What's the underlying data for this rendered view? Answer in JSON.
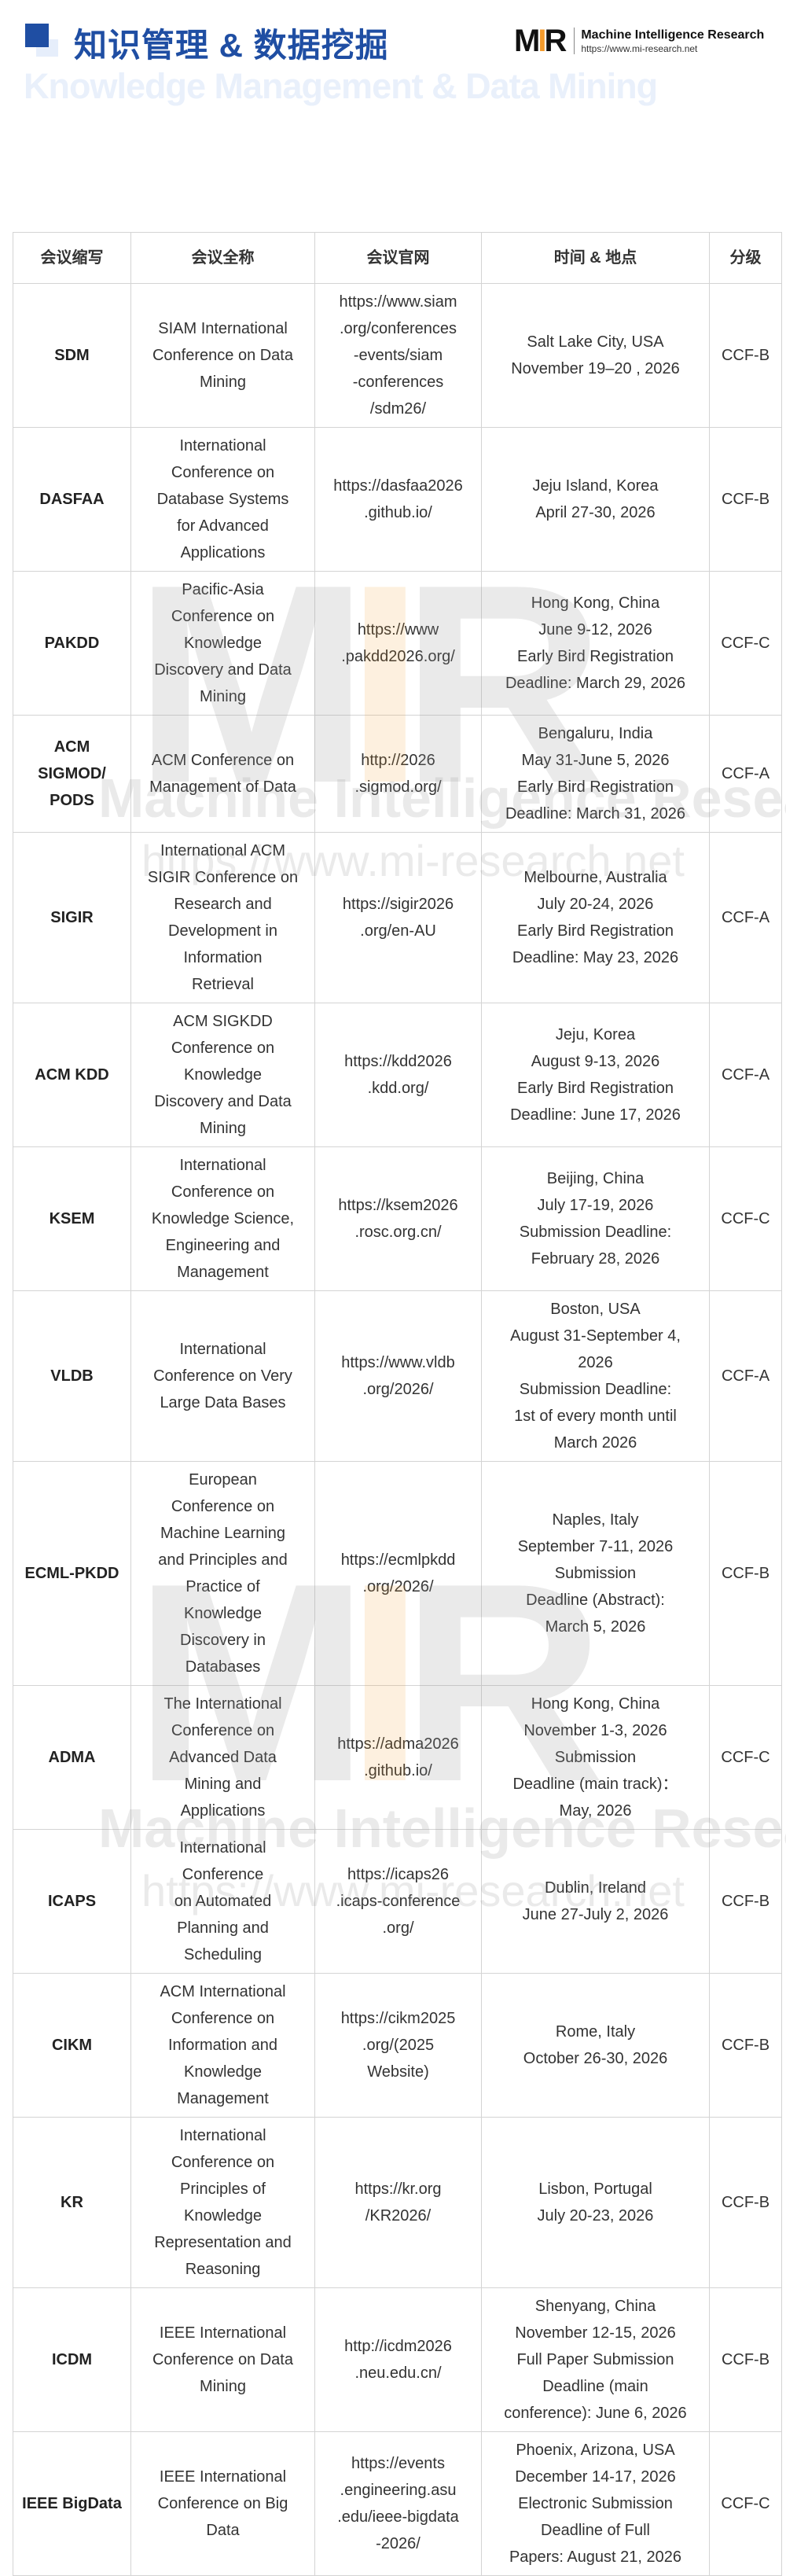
{
  "header": {
    "title": "知识管理 & 数据挖掘",
    "subtitle": "Knowledge Management & Data Mining",
    "logo": {
      "mark_left": "M",
      "mark_mid": "I",
      "mark_right": "R",
      "name": "Machine Intelligence Research",
      "url": "https://www.mi-research.net",
      "accent": "#f39a2b"
    },
    "accent_color": "#1f4ea3"
  },
  "watermark": {
    "mark": "MIR",
    "name": "Machine Intelligence Research",
    "url": "https://www.mi-research.net"
  },
  "table": {
    "columns": [
      "会议缩写",
      "会议全称",
      "会议官网",
      "时间 & 地点",
      "分级"
    ],
    "rows": [
      {
        "abbr": "SDM",
        "name": "SIAM International\nConference on Data\nMining",
        "url": "https://www.siam\n.org/conferences\n-events/siam\n-conferences\n/sdm26/",
        "time": "Salt Lake City, USA\nNovember 19–20 , 2026",
        "rank": "CCF-B"
      },
      {
        "abbr": "DASFAA",
        "name": "International\nConference on\nDatabase Systems\nfor Advanced\nApplications",
        "url": "https://dasfaa2026\n.github.io/",
        "time": "Jeju Island, Korea\nApril 27-30, 2026",
        "rank": "CCF-B"
      },
      {
        "abbr": "PAKDD",
        "name": "Pacific-Asia\nConference on\nKnowledge\nDiscovery and Data\nMining",
        "url": "https://www\n.pakdd2026.org/",
        "time": "Hong Kong, China\nJune 9-12, 2026\nEarly Bird Registration\nDeadline: March 29, 2026",
        "rank": "CCF-C"
      },
      {
        "abbr": "ACM\nSIGMOD/\nPODS",
        "name": "ACM Conference on\nManagement of Data",
        "url": "http://2026\n.sigmod.org/",
        "time": "Bengaluru, India\nMay 31-June 5, 2026\nEarly Bird Registration\nDeadline: March 31, 2026",
        "rank": "CCF-A"
      },
      {
        "abbr": "SIGIR",
        "name": "International ACM\nSIGIR Conference on\nResearch and\nDevelopment in\nInformation\nRetrieval",
        "url": "https://sigir2026\n.org/en-AU",
        "time": "Melbourne, Australia\nJuly 20-24, 2026\nEarly Bird Registration\nDeadline: May 23, 2026",
        "rank": "CCF-A"
      },
      {
        "abbr": "ACM KDD",
        "name": "ACM SIGKDD\nConference on\nKnowledge\nDiscovery and Data\nMining",
        "url": "https://kdd2026\n.kdd.org/",
        "time": "Jeju, Korea\nAugust 9-13, 2026\nEarly Bird Registration\nDeadline: June 17, 2026",
        "rank": "CCF-A"
      },
      {
        "abbr": "KSEM",
        "name": "International\nConference on\nKnowledge Science,\nEngineering and\nManagement",
        "url": "https://ksem2026\n.rosc.org.cn/",
        "time": "Beijing, China\nJuly 17-19, 2026\nSubmission Deadline:\nFebruary 28, 2026",
        "rank": "CCF-C"
      },
      {
        "abbr": "VLDB",
        "name": "International\nConference on Very\nLarge Data Bases",
        "url": "https://www.vldb\n.org/2026/",
        "time": "Boston, USA\nAugust 31-September 4,\n2026\nSubmission Deadline:\n1st of every month until\nMarch 2026",
        "rank": "CCF-A"
      },
      {
        "abbr": "ECML-PKDD",
        "name": "European\nConference on\nMachine Learning\nand Principles and\nPractice of\nKnowledge\nDiscovery in\nDatabases",
        "url": "https://ecmlpkdd\n.org/2026/",
        "time": "Naples, Italy\nSeptember 7-11, 2026\nSubmission\nDeadline (Abstract):\nMarch 5, 2026",
        "rank": "CCF-B"
      },
      {
        "abbr": "ADMA",
        "name": "The International\nConference on\nAdvanced Data\nMining and\nApplications",
        "url": "https://adma2026\n.github.io/",
        "time": "Hong Kong, China\nNovember 1-3, 2026\nSubmission\nDeadline (main track)：\nMay, 2026",
        "rank": "CCF-C"
      },
      {
        "abbr": "ICAPS",
        "name": "International\nConference\non Automated\nPlanning and\nScheduling",
        "url": "https://icaps26\n.icaps-conference\n.org/",
        "time": "Dublin, Ireland\nJune 27-July 2, 2026",
        "rank": "CCF-B"
      },
      {
        "abbr": "CIKM",
        "name": "ACM International\nConference on\nInformation and\nKnowledge\nManagement",
        "url": "https://cikm2025\n.org/(2025\nWebsite)",
        "time": "Rome, Italy\nOctober 26-30, 2026",
        "rank": "CCF-B"
      },
      {
        "abbr": "KR",
        "name": "International\nConference on\nPrinciples of\nKnowledge\nRepresentation and\nReasoning",
        "url": "https://kr.org\n/KR2026/",
        "time": "Lisbon, Portugal\nJuly 20-23, 2026",
        "rank": "CCF-B"
      },
      {
        "abbr": "ICDM",
        "name": "IEEE International\nConference on Data\nMining",
        "url": "http://icdm2026\n.neu.edu.cn/",
        "time": "Shenyang, China\nNovember 12-15, 2026\nFull Paper Submission\nDeadline (main\nconference): June 6, 2026",
        "rank": "CCF-B"
      },
      {
        "abbr": "IEEE BigData",
        "name": "IEEE International\nConference on Big\nData",
        "url": "https://events\n.engineering.asu\n.edu/ieee-bigdata\n-2026/",
        "time": "Phoenix, Arizona, USA\nDecember 14-17, 2026\nElectronic Submission\nDeadline of Full\nPapers: August 21, 2026",
        "rank": "CCF-C"
      }
    ]
  }
}
